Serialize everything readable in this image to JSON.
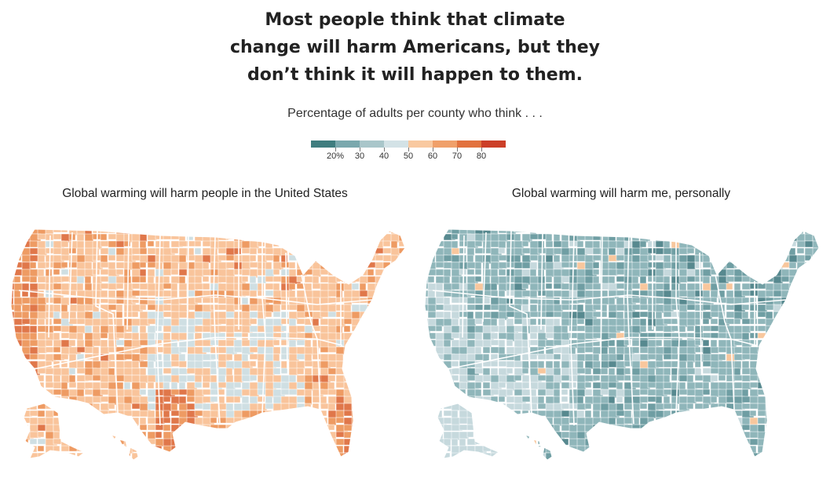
{
  "headline": {
    "lines": [
      "Most people think that climate",
      "change will harm Americans, but they",
      "don’t think it will happen to them."
    ]
  },
  "subtitle": "Percentage of adults per county who think . . .",
  "legend": {
    "colors": [
      "#3f7d7f",
      "#7aa8ad",
      "#a9c6ca",
      "#d3e2e6",
      "#f9c9a0",
      "#f0a06a",
      "#e2723e",
      "#cc3f28"
    ],
    "labels": [
      "20%",
      "30",
      "40",
      "50",
      "60",
      "70",
      "80"
    ]
  },
  "maps": [
    {
      "title": "Global warming will harm people in the United States",
      "palette": {
        "base": "#f9c49b",
        "dark": "#ee9b63",
        "darker": "#e0774a",
        "light": "#cfdfe3",
        "outline": "#ffffff"
      }
    },
    {
      "title": "Global warming will harm me, personally",
      "palette": {
        "base": "#8fb6ba",
        "dark": "#6f9ea3",
        "darker": "#57898f",
        "light": "#c6d9dd",
        "outline": "#ffffff",
        "accent": "#f8c79d"
      }
    }
  ]
}
